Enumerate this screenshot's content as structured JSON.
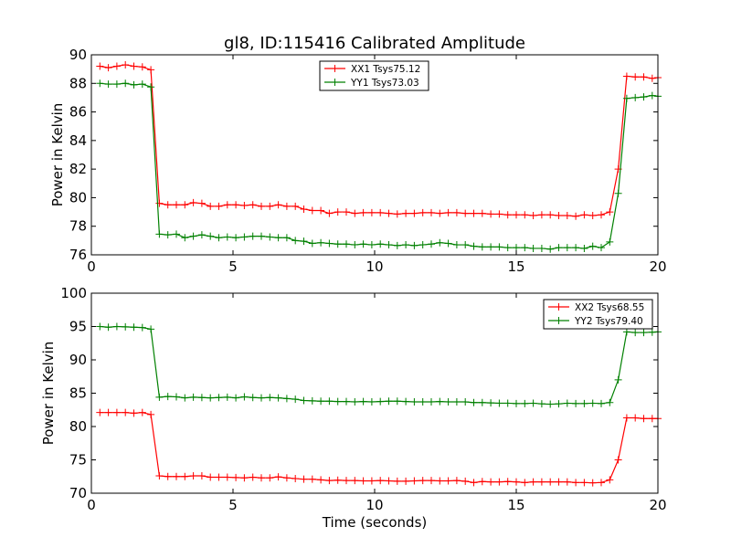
{
  "figure_title": "gl8, ID:115416 Calibrated Amplitude",
  "chart_data": [
    {
      "type": "line",
      "title": "gl8, ID:115416 Calibrated Amplitude",
      "xlabel": "",
      "ylabel": "Power in Kelvin",
      "xlim": [
        0,
        20
      ],
      "ylim": [
        76,
        90
      ],
      "xticks": [
        0,
        5,
        10,
        15,
        20
      ],
      "yticks": [
        76,
        78,
        80,
        82,
        84,
        86,
        88,
        90
      ],
      "grid": false,
      "legend_position": "top-center",
      "series": [
        {
          "name": "XX1 Tsys75.12",
          "color": "#ff0000",
          "x": [
            0.3,
            0.6,
            0.9,
            1.2,
            1.5,
            1.8,
            2.1,
            2.4,
            2.7,
            3.0,
            3.3,
            3.6,
            3.9,
            4.2,
            4.5,
            4.8,
            5.1,
            5.4,
            5.7,
            6.0,
            6.3,
            6.6,
            6.9,
            7.2,
            7.5,
            7.8,
            8.1,
            8.4,
            8.7,
            9.0,
            9.3,
            9.6,
            9.9,
            10.2,
            10.5,
            10.8,
            11.1,
            11.4,
            11.7,
            12.0,
            12.3,
            12.6,
            12.9,
            13.2,
            13.5,
            13.8,
            14.1,
            14.4,
            14.7,
            15.0,
            15.3,
            15.6,
            15.9,
            16.2,
            16.5,
            16.8,
            17.1,
            17.4,
            17.7,
            18.0,
            18.3,
            18.6,
            18.9,
            19.2,
            19.5,
            19.8,
            20.0
          ],
          "y": [
            89.2,
            89.1,
            89.2,
            89.3,
            89.2,
            89.15,
            88.95,
            79.6,
            79.5,
            79.5,
            79.5,
            79.65,
            79.6,
            79.4,
            79.4,
            79.5,
            79.5,
            79.45,
            79.5,
            79.4,
            79.4,
            79.5,
            79.4,
            79.4,
            79.2,
            79.1,
            79.1,
            78.9,
            79.0,
            79.0,
            78.9,
            78.95,
            78.95,
            78.95,
            78.9,
            78.85,
            78.9,
            78.9,
            78.95,
            78.95,
            78.9,
            78.95,
            78.95,
            78.9,
            78.9,
            78.9,
            78.85,
            78.85,
            78.8,
            78.8,
            78.8,
            78.75,
            78.8,
            78.8,
            78.75,
            78.75,
            78.7,
            78.8,
            78.75,
            78.8,
            79.0,
            82.0,
            88.5,
            88.45,
            88.45,
            88.35,
            88.4
          ]
        },
        {
          "name": "YY1 Tsys73.03",
          "color": "#008000",
          "x": [
            0.3,
            0.6,
            0.9,
            1.2,
            1.5,
            1.8,
            2.1,
            2.4,
            2.7,
            3.0,
            3.3,
            3.6,
            3.9,
            4.2,
            4.5,
            4.8,
            5.1,
            5.4,
            5.7,
            6.0,
            6.3,
            6.6,
            6.9,
            7.2,
            7.5,
            7.8,
            8.1,
            8.4,
            8.7,
            9.0,
            9.3,
            9.6,
            9.9,
            10.2,
            10.5,
            10.8,
            11.1,
            11.4,
            11.7,
            12.0,
            12.3,
            12.6,
            12.9,
            13.2,
            13.5,
            13.8,
            14.1,
            14.4,
            14.7,
            15.0,
            15.3,
            15.6,
            15.9,
            16.2,
            16.5,
            16.8,
            17.1,
            17.4,
            17.7,
            18.0,
            18.3,
            18.6,
            18.9,
            19.2,
            19.5,
            19.8,
            20.0
          ],
          "y": [
            88.0,
            87.95,
            87.95,
            88.0,
            87.9,
            87.95,
            87.75,
            77.45,
            77.4,
            77.45,
            77.2,
            77.3,
            77.4,
            77.3,
            77.2,
            77.25,
            77.2,
            77.25,
            77.3,
            77.3,
            77.25,
            77.2,
            77.2,
            77.0,
            76.95,
            76.8,
            76.85,
            76.8,
            76.75,
            76.75,
            76.7,
            76.75,
            76.7,
            76.75,
            76.7,
            76.65,
            76.7,
            76.65,
            76.7,
            76.75,
            76.85,
            76.8,
            76.7,
            76.7,
            76.6,
            76.55,
            76.55,
            76.55,
            76.5,
            76.5,
            76.5,
            76.45,
            76.45,
            76.4,
            76.5,
            76.5,
            76.5,
            76.45,
            76.6,
            76.5,
            76.9,
            80.3,
            86.95,
            87.0,
            87.05,
            87.15,
            87.1
          ]
        }
      ]
    },
    {
      "type": "line",
      "title": "",
      "xlabel": "Time (seconds)",
      "ylabel": "Power in Kelvin",
      "xlim": [
        0,
        20
      ],
      "ylim": [
        70,
        100
      ],
      "xticks": [
        0,
        5,
        10,
        15,
        20
      ],
      "yticks": [
        70,
        75,
        80,
        85,
        90,
        95,
        100
      ],
      "grid": false,
      "legend_position": "top-right",
      "series": [
        {
          "name": "XX2 Tsys68.55",
          "color": "#ff0000",
          "x": [
            0.3,
            0.6,
            0.9,
            1.2,
            1.5,
            1.8,
            2.1,
            2.4,
            2.7,
            3.0,
            3.3,
            3.6,
            3.9,
            4.2,
            4.5,
            4.8,
            5.1,
            5.4,
            5.7,
            6.0,
            6.3,
            6.6,
            6.9,
            7.2,
            7.5,
            7.8,
            8.1,
            8.4,
            8.7,
            9.0,
            9.3,
            9.6,
            9.9,
            10.2,
            10.5,
            10.8,
            11.1,
            11.4,
            11.7,
            12.0,
            12.3,
            12.6,
            12.9,
            13.2,
            13.5,
            13.8,
            14.1,
            14.4,
            14.7,
            15.0,
            15.3,
            15.6,
            15.9,
            16.2,
            16.5,
            16.8,
            17.1,
            17.4,
            17.7,
            18.0,
            18.3,
            18.6,
            18.9,
            19.2,
            19.5,
            19.8,
            20.0
          ],
          "y": [
            82.1,
            82.1,
            82.1,
            82.1,
            82.0,
            82.1,
            81.8,
            72.6,
            72.5,
            72.5,
            72.5,
            72.6,
            72.6,
            72.4,
            72.4,
            72.4,
            72.35,
            72.3,
            72.4,
            72.3,
            72.3,
            72.45,
            72.3,
            72.2,
            72.1,
            72.1,
            72.0,
            71.9,
            71.95,
            71.9,
            71.9,
            71.85,
            71.85,
            71.9,
            71.85,
            71.8,
            71.8,
            71.85,
            71.9,
            71.9,
            71.85,
            71.85,
            71.9,
            71.8,
            71.6,
            71.75,
            71.7,
            71.7,
            71.75,
            71.7,
            71.6,
            71.7,
            71.7,
            71.7,
            71.7,
            71.7,
            71.6,
            71.6,
            71.55,
            71.6,
            72.0,
            75.0,
            81.3,
            81.3,
            81.2,
            81.2,
            81.2
          ]
        },
        {
          "name": "YY2 Tsys79.40",
          "color": "#008000",
          "x": [
            0.3,
            0.6,
            0.9,
            1.2,
            1.5,
            1.8,
            2.1,
            2.4,
            2.7,
            3.0,
            3.3,
            3.6,
            3.9,
            4.2,
            4.5,
            4.8,
            5.1,
            5.4,
            5.7,
            6.0,
            6.3,
            6.6,
            6.9,
            7.2,
            7.5,
            7.8,
            8.1,
            8.4,
            8.7,
            9.0,
            9.3,
            9.6,
            9.9,
            10.2,
            10.5,
            10.8,
            11.1,
            11.4,
            11.7,
            12.0,
            12.3,
            12.6,
            12.9,
            13.2,
            13.5,
            13.8,
            14.1,
            14.4,
            14.7,
            15.0,
            15.3,
            15.6,
            15.9,
            16.2,
            16.5,
            16.8,
            17.1,
            17.4,
            17.7,
            18.0,
            18.3,
            18.6,
            18.9,
            19.2,
            19.5,
            19.8,
            20.0
          ],
          "y": [
            95.0,
            94.9,
            95.0,
            94.95,
            94.9,
            94.85,
            94.6,
            84.4,
            84.5,
            84.45,
            84.3,
            84.4,
            84.35,
            84.3,
            84.35,
            84.4,
            84.3,
            84.45,
            84.35,
            84.3,
            84.35,
            84.3,
            84.2,
            84.1,
            83.9,
            83.85,
            83.8,
            83.8,
            83.75,
            83.75,
            83.7,
            83.75,
            83.7,
            83.75,
            83.8,
            83.8,
            83.75,
            83.7,
            83.7,
            83.7,
            83.75,
            83.7,
            83.7,
            83.7,
            83.6,
            83.6,
            83.55,
            83.5,
            83.5,
            83.45,
            83.45,
            83.5,
            83.4,
            83.35,
            83.4,
            83.5,
            83.45,
            83.45,
            83.5,
            83.45,
            83.6,
            87.0,
            94.2,
            94.1,
            94.1,
            94.15,
            94.2
          ]
        }
      ]
    }
  ]
}
